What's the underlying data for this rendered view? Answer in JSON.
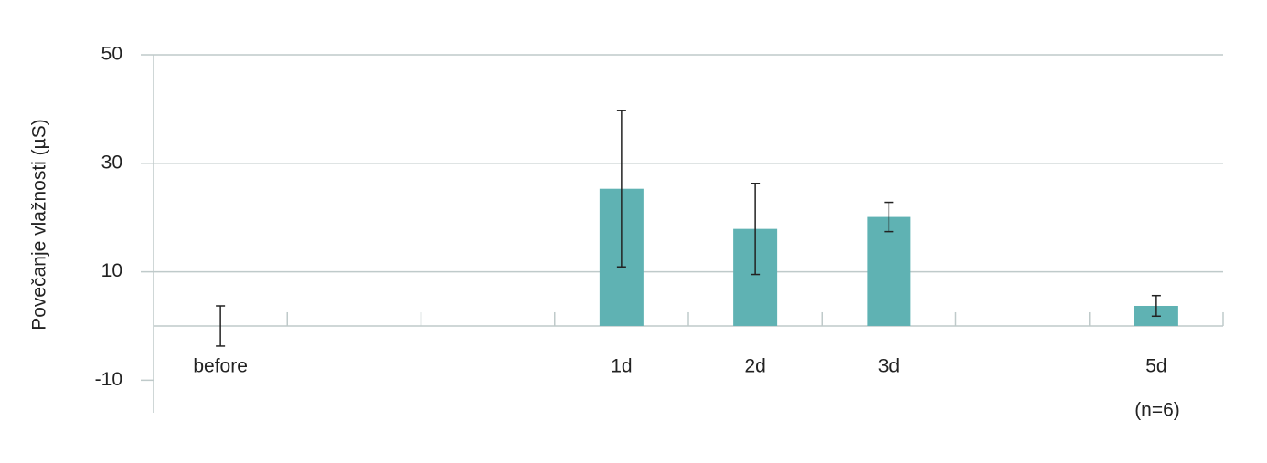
{
  "chart_data": {
    "type": "bar",
    "y_label": "Povečanje vlažnosti (µS)",
    "categories": [
      "before",
      null,
      null,
      "1d",
      "2d",
      "3d",
      null,
      "5d"
    ],
    "values": [
      0,
      null,
      null,
      25.3,
      17.9,
      20.1,
      null,
      3.7
    ],
    "errors": [
      3.7,
      null,
      null,
      14.4,
      8.4,
      2.7,
      null,
      1.9
    ],
    "color": "#5fb2b3",
    "ylim": [
      -16,
      50
    ],
    "yticks": [
      -10,
      10,
      30,
      50
    ],
    "grid": true,
    "annotation": "(n=6)"
  }
}
